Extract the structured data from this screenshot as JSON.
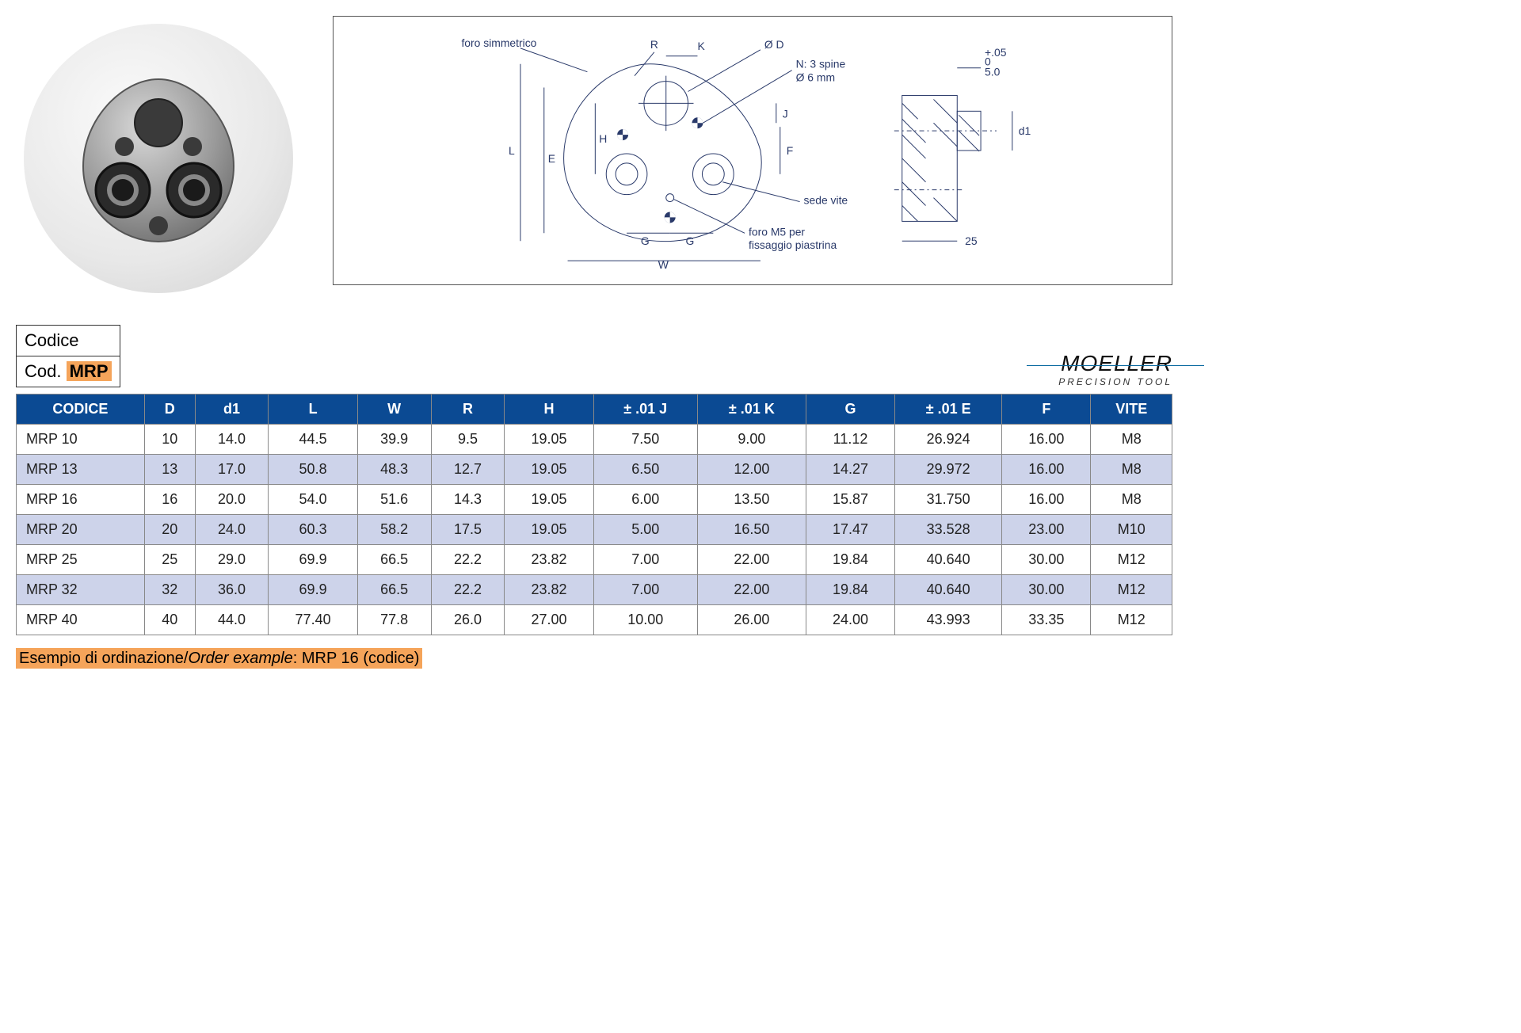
{
  "codice_box": {
    "label": "Codice",
    "prefix": "Cod.",
    "code": "MRP"
  },
  "logo": {
    "main": "MOELLER",
    "sub": "PRECISION TOOL"
  },
  "diagram": {
    "labels": {
      "foro_simmetrico": "foro simmetrico",
      "R": "R",
      "K": "K",
      "diam_D": "Ø D",
      "spine": "N: 3 spine",
      "spine_diam": "Ø 6 mm",
      "J": "J",
      "F": "F",
      "sede_vite": "sede vite",
      "foro_M5": "foro M5 per",
      "foro_M5_2": "fissaggio piastrina",
      "G": "G",
      "W": "W",
      "L": "L",
      "E": "E",
      "H": "H",
      "d1": "d1",
      "side_dim_top": "5.0",
      "side_tol": "+.05",
      "side_tol2": "0",
      "side_dim_bot": "25"
    },
    "colors": {
      "line": "#2a3a6a",
      "text": "#2a3a6a"
    }
  },
  "table": {
    "header_bg": "#0b4a93",
    "header_fg": "#ffffff",
    "alt_row_bg": "#cdd3ea",
    "border": "#888888",
    "columns": [
      "CODICE",
      "D",
      "d1",
      "L",
      "W",
      "R",
      "H",
      "± .01 J",
      "± .01 K",
      "G",
      "± .01 E",
      "F",
      "VITE"
    ],
    "rows": [
      [
        "MRP 10",
        "10",
        "14.0",
        "44.5",
        "39.9",
        "9.5",
        "19.05",
        "7.50",
        "9.00",
        "11.12",
        "26.924",
        "16.00",
        "M8"
      ],
      [
        "MRP 13",
        "13",
        "17.0",
        "50.8",
        "48.3",
        "12.7",
        "19.05",
        "6.50",
        "12.00",
        "14.27",
        "29.972",
        "16.00",
        "M8"
      ],
      [
        "MRP 16",
        "16",
        "20.0",
        "54.0",
        "51.6",
        "14.3",
        "19.05",
        "6.00",
        "13.50",
        "15.87",
        "31.750",
        "16.00",
        "M8"
      ],
      [
        "MRP 20",
        "20",
        "24.0",
        "60.3",
        "58.2",
        "17.5",
        "19.05",
        "5.00",
        "16.50",
        "17.47",
        "33.528",
        "23.00",
        "M10"
      ],
      [
        "MRP 25",
        "25",
        "29.0",
        "69.9",
        "66.5",
        "22.2",
        "23.82",
        "7.00",
        "22.00",
        "19.84",
        "40.640",
        "30.00",
        "M12"
      ],
      [
        "MRP 32",
        "32",
        "36.0",
        "69.9",
        "66.5",
        "22.2",
        "23.82",
        "7.00",
        "22.00",
        "19.84",
        "40.640",
        "30.00",
        "M12"
      ],
      [
        "MRP 40",
        "40",
        "44.0",
        "77.40",
        "77.8",
        "26.0",
        "27.00",
        "10.00",
        "26.00",
        "24.00",
        "43.993",
        "33.35",
        "M12"
      ]
    ]
  },
  "order_example": {
    "label_it": "Esempio di ordinazione",
    "label_en": "Order example",
    "value": "MRP 16 (codice)"
  }
}
